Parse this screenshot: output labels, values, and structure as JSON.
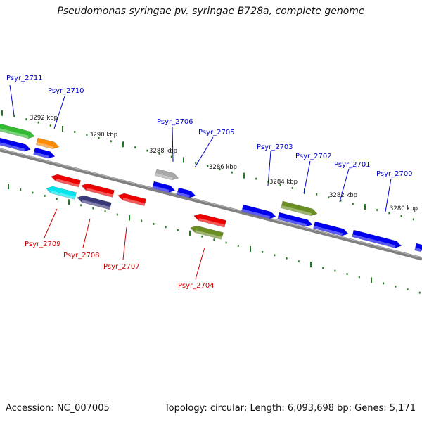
{
  "title": "Pseudomonas syringae pv. syringae B728a, complete genome",
  "footer": {
    "accession": "Accession: NC_007005",
    "topology": "Topology: circular; Length: 6,093,698 bp; Genes: 5,171"
  },
  "colors": {
    "backbone": "#808080",
    "tick": "#1f7a1f",
    "forward_label": "#0000cc",
    "reverse_label": "#cc0000"
  },
  "scale_labels": [
    "3292 kbp",
    "3290 kbp",
    "3288 kbp",
    "3286 kbp",
    "3284 kbp",
    "3282 kbp",
    "3280 kbp"
  ],
  "forward_gene_labels": [
    "Psyr_2711",
    "Psyr_2710",
    "Psyr_2706",
    "Psyr_2705",
    "Psyr_2703",
    "Psyr_2702",
    "Psyr_2701",
    "Psyr_2700"
  ],
  "reverse_gene_labels": [
    "Psyr_2709",
    "Psyr_2708",
    "Psyr_2707",
    "Psyr_2704"
  ],
  "gene_colors": {
    "blue": "#0000ee",
    "green": "#33bb33",
    "orange": "#ff8c00",
    "gray": "#a8a8a8",
    "olive": "#6b8e23",
    "red": "#ee0000",
    "cyan": "#00e5ee",
    "navy": "#3a3a7a"
  }
}
